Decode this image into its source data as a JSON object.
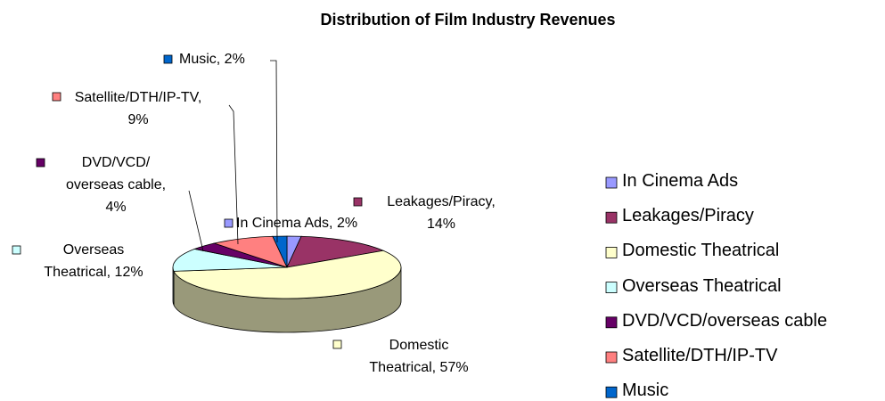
{
  "chart_data": {
    "type": "pie",
    "title": "Distribution of Film Industry Revenues",
    "categories": [
      "In Cinema Ads",
      "Leakages/Piracy",
      "Domestic Theatrical",
      "Overseas Theatrical",
      "DVD/VCD/overseas cable",
      "Satellite/DTH/IP-TV",
      "Music"
    ],
    "values": [
      2,
      14,
      57,
      12,
      4,
      9,
      2
    ],
    "value_labels": [
      "In Cinema Ads, 2%",
      "Leakages/Piracy,\n14%",
      "Domestic\nTheatrical, 57%",
      "Overseas\nTheatrical, 12%",
      "DVD/VCD/\noverseas cable,\n4%",
      "Satellite/DTH/IP-TV,\n9%",
      "Music, 2%"
    ],
    "colors": [
      "#9999ff",
      "#993366",
      "#ffffcc",
      "#ccffff",
      "#660066",
      "#ff8080",
      "#0066cc"
    ],
    "legend": "right"
  }
}
